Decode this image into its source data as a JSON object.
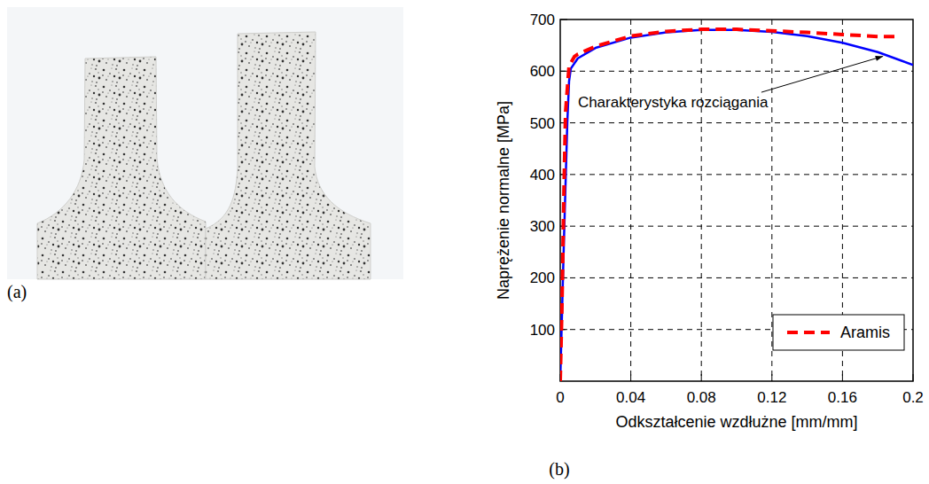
{
  "panel_labels": [
    "(a)",
    "(b)"
  ],
  "chart_data": {
    "type": "line",
    "x_label": "Odkształcenie wzdłużne [mm/mm]",
    "y_label": "Naprężenie normalne [MPa]",
    "xlim": [
      0,
      0.2
    ],
    "ylim": [
      0,
      700
    ],
    "xticks": [
      0,
      0.04,
      0.08,
      0.12,
      0.16,
      0.2
    ],
    "yticks": [
      100,
      200,
      300,
      400,
      500,
      600,
      700
    ],
    "grid": true,
    "legend": "lower right",
    "series": [
      {
        "color": "#0000ff",
        "line_style": "solid",
        "x": [
          0,
          0.002,
          0.004,
          0.005,
          0.006,
          0.01,
          0.02,
          0.04,
          0.06,
          0.08,
          0.1,
          0.12,
          0.14,
          0.16,
          0.18,
          0.2
        ],
        "values": [
          0,
          260,
          500,
          580,
          605,
          625,
          645,
          665,
          675,
          680,
          680,
          676,
          668,
          655,
          637,
          612
        ]
      },
      {
        "name": "Aramis",
        "color": "#ff0000",
        "line_style": "dashed",
        "x": [
          0,
          0.001,
          0.002,
          0.003,
          0.005,
          0.008,
          0.01,
          0.02,
          0.04,
          0.06,
          0.08,
          0.1,
          0.12,
          0.14,
          0.16,
          0.18,
          0.19
        ],
        "values": [
          0,
          150,
          350,
          520,
          610,
          628,
          633,
          648,
          668,
          677,
          681,
          681,
          678,
          675,
          671,
          667,
          667
        ]
      }
    ],
    "annotations": [
      {
        "text": "Charakterystyka rozciągania",
        "x": 0.01,
        "y": 530,
        "arrow_x": 0.183,
        "arrow_y": 634
      }
    ]
  }
}
